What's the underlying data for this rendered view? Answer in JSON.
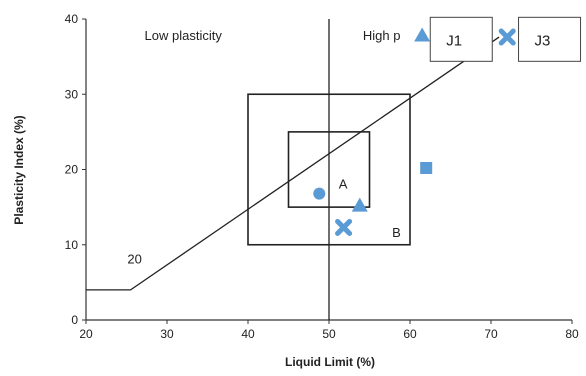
{
  "chart_data": {
    "type": "scatter",
    "xlabel": "Liquid Limit (%)",
    "ylabel": "Plasticity Index (%)",
    "xlim": [
      20,
      80
    ],
    "ylim": [
      0,
      40
    ],
    "x_ticks": [
      "20",
      "30",
      "40",
      "50",
      "60",
      "70",
      "80"
    ],
    "y_ticks": [
      "0",
      "10",
      "20",
      "30",
      "40"
    ],
    "grid": false,
    "divider_x": 50,
    "a_line": [
      [
        20,
        4
      ],
      [
        25.5,
        4
      ],
      [
        71,
        37.6
      ]
    ],
    "regions": [
      {
        "label": "A",
        "x": [
          45,
          55
        ],
        "y": [
          15,
          25
        ],
        "label_at": [
          51.2,
          17.5
        ]
      },
      {
        "label": "B",
        "x": [
          40,
          60
        ],
        "y": [
          10,
          30
        ],
        "label_at": [
          57.8,
          11.0
        ]
      }
    ],
    "annotations": [
      {
        "text": "Low plasticity",
        "x": 32,
        "y": 37.2
      },
      {
        "text": "High p",
        "x": 56.5,
        "y": 37.2
      },
      {
        "text": "20",
        "x": 26,
        "y": 7.5
      }
    ],
    "marker_color": "#5b9bd5",
    "points": [
      {
        "marker": "circle",
        "x": 48.8,
        "y": 16.8
      },
      {
        "marker": "triangle",
        "x": 53.8,
        "y": 15.2
      },
      {
        "marker": "x",
        "x": 51.8,
        "y": 12.3
      },
      {
        "marker": "square",
        "x": 62,
        "y": 20.2
      },
      {
        "marker": "triangle",
        "x": 61.5,
        "y": 37.8
      },
      {
        "marker": "x",
        "x": 72,
        "y": 37.6
      }
    ],
    "callouts": [
      {
        "label": "J1",
        "x": 62.5,
        "y": 37.3
      },
      {
        "label": "J3",
        "x": 73.4,
        "y": 37.3
      }
    ]
  }
}
